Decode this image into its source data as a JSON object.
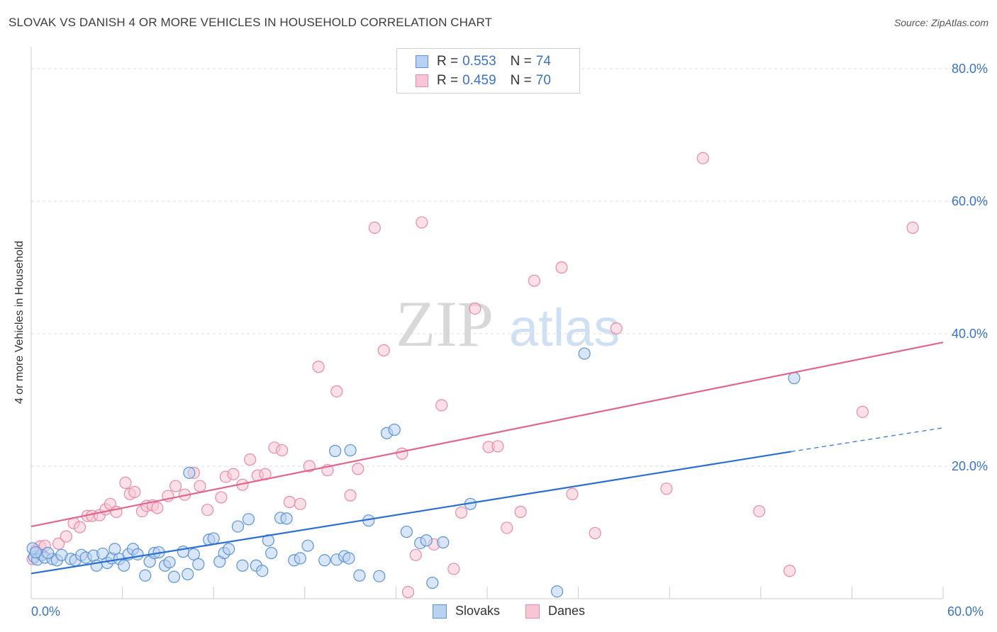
{
  "title": "SLOVAK VS DANISH 4 OR MORE VEHICLES IN HOUSEHOLD CORRELATION CHART",
  "source": "Source: ZipAtlas.com",
  "watermark": {
    "zip": "ZIP",
    "atlas": "atlas"
  },
  "colors": {
    "blue_fill": "#b9d2f0",
    "blue_stroke": "#5b93d6",
    "blue_line": "#2a6fd0",
    "pink_fill": "#f7c6d4",
    "pink_stroke": "#e98aa8",
    "pink_line": "#e0668f",
    "axis_text": "#3b73c4",
    "grid": "#dddddd"
  },
  "legend": {
    "rows": [
      {
        "r_label": "R =",
        "r_value": "0.553",
        "n_label": "N =",
        "n_value": "74",
        "color": "blue"
      },
      {
        "r_label": "R =",
        "r_value": "0.459",
        "n_label": "N =",
        "n_value": "70",
        "color": "pink"
      }
    ]
  },
  "bottom_legend": [
    {
      "label": "Slovaks",
      "color": "blue"
    },
    {
      "label": "Danes",
      "color": "pink"
    }
  ],
  "chart_data": {
    "type": "scatter",
    "title": "SLOVAK VS DANISH 4 OR MORE VEHICLES IN HOUSEHOLD CORRELATION CHART",
    "xlabel": "",
    "ylabel": "4 or more Vehicles in Household",
    "xlim": [
      0,
      60
    ],
    "ylim": [
      0,
      80
    ],
    "x_tick_labels": [
      "0.0%",
      "60.0%"
    ],
    "y_tick_labels": [
      "20.0%",
      "40.0%",
      "60.0%",
      "80.0%"
    ],
    "y_ticks": [
      20,
      40,
      60,
      80
    ],
    "grid": true,
    "legend_position": "top-center",
    "series": [
      {
        "name": "Slovaks",
        "color": "blue",
        "trend": {
          "x": [
            0,
            50
          ],
          "y": [
            3.8,
            22.2
          ],
          "dashed_to": [
            60,
            25.8
          ]
        },
        "points": [
          [
            0.2,
            6.3
          ],
          [
            0.4,
            5.9
          ],
          [
            0.7,
            6.6
          ],
          [
            0.9,
            6.2
          ],
          [
            1.4,
            6.0
          ],
          [
            1.7,
            5.8
          ],
          [
            2.0,
            6.6
          ],
          [
            2.6,
            6.0
          ],
          [
            2.9,
            5.8
          ],
          [
            3.3,
            6.6
          ],
          [
            3.6,
            6.2
          ],
          [
            4.1,
            6.5
          ],
          [
            4.3,
            5.0
          ],
          [
            4.7,
            6.8
          ],
          [
            5.0,
            5.4
          ],
          [
            5.3,
            6.1
          ],
          [
            5.5,
            7.5
          ],
          [
            5.8,
            6.0
          ],
          [
            6.1,
            5.0
          ],
          [
            6.4,
            6.7
          ],
          [
            6.7,
            7.5
          ],
          [
            7.0,
            6.7
          ],
          [
            7.5,
            3.5
          ],
          [
            7.8,
            5.6
          ],
          [
            8.1,
            6.9
          ],
          [
            8.4,
            7.0
          ],
          [
            8.8,
            5.0
          ],
          [
            9.1,
            5.5
          ],
          [
            9.4,
            3.3
          ],
          [
            10.0,
            7.1
          ],
          [
            10.3,
            3.7
          ],
          [
            10.7,
            6.7
          ],
          [
            11.0,
            5.2
          ],
          [
            11.7,
            8.9
          ],
          [
            12.0,
            9.1
          ],
          [
            12.4,
            5.6
          ],
          [
            12.7,
            6.9
          ],
          [
            13.0,
            7.5
          ],
          [
            13.6,
            10.9
          ],
          [
            13.9,
            5.0
          ],
          [
            14.3,
            12.0
          ],
          [
            14.8,
            5.0
          ],
          [
            15.2,
            4.2
          ],
          [
            15.6,
            8.8
          ],
          [
            15.8,
            6.9
          ],
          [
            16.4,
            12.2
          ],
          [
            16.8,
            12.1
          ],
          [
            17.3,
            5.8
          ],
          [
            17.7,
            6.1
          ],
          [
            18.2,
            8.0
          ],
          [
            19.3,
            5.8
          ],
          [
            20.1,
            5.9
          ],
          [
            20.6,
            6.4
          ],
          [
            20.9,
            6.1
          ],
          [
            21.6,
            3.5
          ],
          [
            22.2,
            11.8
          ],
          [
            22.9,
            3.4
          ],
          [
            23.4,
            25.0
          ],
          [
            23.9,
            25.5
          ],
          [
            24.7,
            10.1
          ],
          [
            25.6,
            8.4
          ],
          [
            26.0,
            8.8
          ],
          [
            26.4,
            2.4
          ],
          [
            27.1,
            8.5
          ],
          [
            28.9,
            14.3
          ],
          [
            34.6,
            1.1
          ],
          [
            36.4,
            37.0
          ],
          [
            50.2,
            33.3
          ],
          [
            10.4,
            19.0
          ],
          [
            20.0,
            22.3
          ],
          [
            21.0,
            22.4
          ],
          [
            0.1,
            7.6
          ],
          [
            0.3,
            7.0
          ],
          [
            1.1,
            6.9
          ]
        ]
      },
      {
        "name": "Danes",
        "color": "pink",
        "trend": {
          "x": [
            0,
            60
          ],
          "y": [
            10.9,
            38.7
          ]
        },
        "points": [
          [
            0.3,
            7.3
          ],
          [
            0.6,
            7.9
          ],
          [
            0.9,
            8.0
          ],
          [
            1.8,
            8.3
          ],
          [
            2.3,
            9.4
          ],
          [
            2.8,
            11.4
          ],
          [
            3.2,
            10.8
          ],
          [
            3.7,
            12.5
          ],
          [
            4.0,
            12.5
          ],
          [
            4.5,
            12.6
          ],
          [
            4.9,
            13.5
          ],
          [
            5.2,
            14.3
          ],
          [
            5.6,
            13.1
          ],
          [
            6.2,
            17.5
          ],
          [
            6.5,
            15.8
          ],
          [
            6.8,
            16.1
          ],
          [
            7.3,
            13.2
          ],
          [
            7.6,
            14.0
          ],
          [
            8.0,
            14.1
          ],
          [
            8.3,
            13.7
          ],
          [
            9.0,
            15.5
          ],
          [
            9.5,
            17.0
          ],
          [
            10.1,
            15.7
          ],
          [
            10.7,
            19.0
          ],
          [
            11.1,
            17.0
          ],
          [
            11.6,
            13.4
          ],
          [
            12.5,
            15.3
          ],
          [
            12.8,
            18.4
          ],
          [
            13.3,
            18.8
          ],
          [
            13.9,
            17.2
          ],
          [
            14.4,
            21.0
          ],
          [
            14.9,
            18.6
          ],
          [
            15.4,
            18.8
          ],
          [
            16.0,
            22.8
          ],
          [
            16.5,
            22.4
          ],
          [
            17.0,
            14.6
          ],
          [
            17.7,
            14.3
          ],
          [
            18.3,
            20.0
          ],
          [
            18.9,
            35.0
          ],
          [
            19.5,
            19.4
          ],
          [
            20.1,
            31.3
          ],
          [
            21.0,
            15.6
          ],
          [
            21.5,
            19.6
          ],
          [
            22.6,
            56.0
          ],
          [
            23.2,
            37.5
          ],
          [
            24.4,
            21.9
          ],
          [
            24.8,
            1.0
          ],
          [
            25.3,
            6.6
          ],
          [
            25.7,
            56.8
          ],
          [
            26.5,
            8.2
          ],
          [
            27.0,
            29.2
          ],
          [
            27.8,
            4.5
          ],
          [
            28.3,
            13.0
          ],
          [
            29.2,
            43.8
          ],
          [
            30.1,
            22.9
          ],
          [
            30.7,
            23.0
          ],
          [
            31.3,
            10.7
          ],
          [
            32.2,
            13.1
          ],
          [
            33.1,
            48.0
          ],
          [
            34.9,
            50.0
          ],
          [
            35.6,
            15.8
          ],
          [
            37.1,
            9.9
          ],
          [
            38.5,
            40.8
          ],
          [
            41.8,
            16.6
          ],
          [
            44.2,
            66.5
          ],
          [
            47.9,
            13.2
          ],
          [
            49.9,
            4.2
          ],
          [
            54.7,
            28.2
          ],
          [
            58.0,
            56.0
          ],
          [
            0.1,
            6.0
          ]
        ]
      }
    ]
  }
}
